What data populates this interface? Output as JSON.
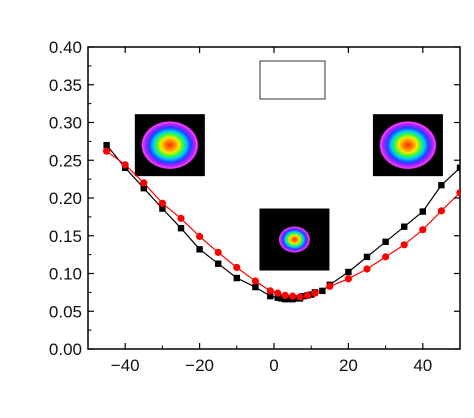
{
  "chart_data": {
    "type": "scatter",
    "title": "",
    "xlabel": "",
    "ylabel": "",
    "xlim": [
      -50,
      50
    ],
    "ylim": [
      0.0,
      0.4
    ],
    "grid": false,
    "x_ticks": [
      {
        "value": -40,
        "label": "−40"
      },
      {
        "value": -20,
        "label": "−20"
      },
      {
        "value": 0,
        "label": "0"
      },
      {
        "value": 20,
        "label": "20"
      },
      {
        "value": 40,
        "label": "40"
      }
    ],
    "y_ticks": [
      {
        "value": 0.0,
        "label": "0.00"
      },
      {
        "value": 0.05,
        "label": "0.05"
      },
      {
        "value": 0.1,
        "label": "0.10"
      },
      {
        "value": 0.15,
        "label": "0.15"
      },
      {
        "value": 0.2,
        "label": "0.20"
      },
      {
        "value": 0.25,
        "label": "0.25"
      },
      {
        "value": 0.3,
        "label": "0.30"
      },
      {
        "value": 0.35,
        "label": "0.35"
      },
      {
        "value": 0.4,
        "label": "0.40"
      }
    ],
    "series": [
      {
        "marker": "square",
        "color": "#000000",
        "x": [
          -45,
          -40,
          -35,
          -30,
          -25,
          -20,
          -15,
          -10,
          -5,
          -1,
          1,
          2,
          3,
          4,
          5,
          6,
          7,
          8,
          9,
          10,
          11,
          13,
          15,
          20,
          25,
          30,
          35,
          40,
          45,
          50
        ],
        "y": [
          0.27,
          0.24,
          0.213,
          0.186,
          0.16,
          0.132,
          0.113,
          0.094,
          0.082,
          0.07,
          0.068,
          0.067,
          0.066,
          0.066,
          0.066,
          0.067,
          0.067,
          0.07,
          0.071,
          0.072,
          0.075,
          0.077,
          0.085,
          0.102,
          0.122,
          0.142,
          0.162,
          0.182,
          0.217,
          0.24
        ]
      },
      {
        "marker": "circle",
        "color": "#ff0000",
        "x": [
          -45,
          -40,
          -35,
          -30,
          -25,
          -20,
          -15,
          -10,
          -5,
          -1,
          1,
          3,
          5,
          7,
          9,
          11,
          15,
          20,
          25,
          30,
          35,
          40,
          45,
          50
        ],
        "y": [
          0.262,
          0.244,
          0.22,
          0.193,
          0.173,
          0.149,
          0.128,
          0.108,
          0.09,
          0.077,
          0.074,
          0.071,
          0.07,
          0.069,
          0.071,
          0.074,
          0.083,
          0.093,
          0.106,
          0.122,
          0.138,
          0.158,
          0.183,
          0.207
        ]
      }
    ],
    "legend": {
      "placement": "top-center",
      "entries": []
    },
    "insets": [
      {
        "name": "beam-profile-left",
        "anchor_x": -28,
        "anchor_y": 0.27,
        "ring_scale": 0.82
      },
      {
        "name": "beam-profile-center",
        "anchor_x": 5.5,
        "anchor_y": 0.145,
        "ring_scale": 0.45
      },
      {
        "name": "beam-profile-right",
        "anchor_x": 36,
        "anchor_y": 0.27,
        "ring_scale": 0.82
      }
    ]
  }
}
